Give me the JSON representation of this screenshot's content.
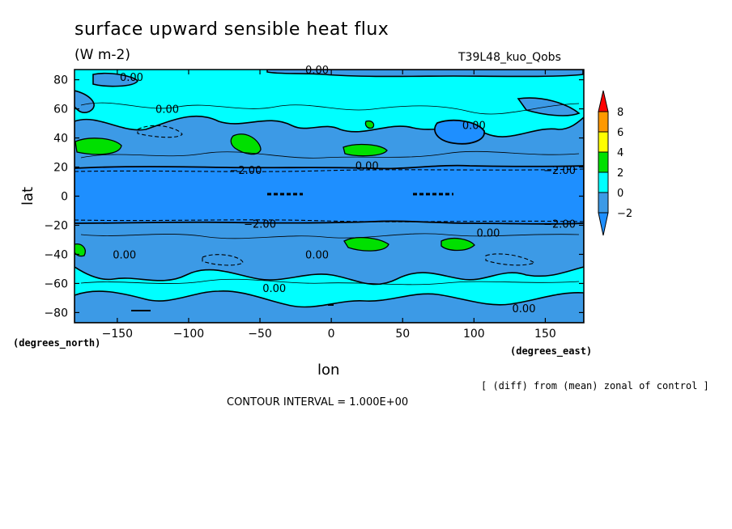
{
  "title": "surface upward sensible heat flux",
  "units": "(W m-2)",
  "run_label": "T39L48_kuo_Qobs",
  "note": "[ (diff) from (mean) zonal of control ]",
  "contour_interval": "CONTOUR INTERVAL = 1.000E+00",
  "colors": {
    "lt_minus2": "#1e8fff",
    "m2_0": "#3c9ae6",
    "0_2": "#00ffff",
    "2_4": "#00e000",
    "4_6": "#ffff00",
    "6_8": "#ff9900",
    "gt_8": "#ff0000"
  },
  "chart_data": {
    "type": "heatmap",
    "xlabel": "lon",
    "ylabel": "lat",
    "x_units": "(degrees_east)",
    "y_units": "(degrees_north)",
    "xlim": [
      -180,
      177
    ],
    "ylim": [
      -87,
      87
    ],
    "x_ticks": [
      -150,
      -100,
      -50,
      0,
      50,
      100,
      150
    ],
    "y_ticks": [
      80,
      60,
      40,
      20,
      0,
      -20,
      -40,
      -60,
      -80
    ],
    "colorbar_levels": [
      8,
      6,
      4,
      2,
      0,
      -2
    ],
    "contour_labels": [
      {
        "text": "0.00",
        "lon": -140,
        "lat": 82
      },
      {
        "text": "0.00",
        "lon": -10,
        "lat": 87
      },
      {
        "text": "0.00",
        "lon": -115,
        "lat": 60
      },
      {
        "text": "0.00",
        "lon": 100,
        "lat": 49
      },
      {
        "text": "-2.00",
        "lon": -60,
        "lat": 18
      },
      {
        "text": "0.00",
        "lon": 25,
        "lat": 21
      },
      {
        "text": "-2.00",
        "lon": 160,
        "lat": 18
      },
      {
        "text": "-2.00",
        "lon": -50,
        "lat": -19
      },
      {
        "text": "-2.00",
        "lon": 160,
        "lat": -19
      },
      {
        "text": "0.00",
        "lon": 110,
        "lat": -25
      },
      {
        "text": "0.00",
        "lon": -145,
        "lat": -40
      },
      {
        "text": "0.00",
        "lon": -10,
        "lat": -40
      },
      {
        "text": "0.00",
        "lon": -40,
        "lat": -63
      },
      {
        "text": "0.00",
        "lon": 135,
        "lat": -77
      }
    ]
  }
}
